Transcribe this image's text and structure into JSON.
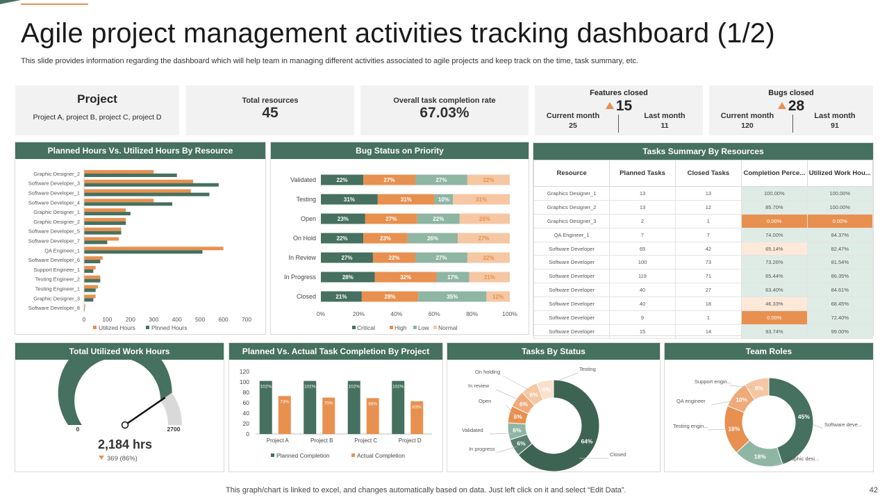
{
  "slide": {
    "title": "Agile project management activities tracking dashboard (1/2)",
    "subtitle": "This slide provides information regarding the dashboard which will help team in managing different activities associated to agile projects and keep track on the time, task summary, etc.",
    "footer": "This graph/chart is linked to excel,  and changes automatically based on data. Just left click on it and select “Edit Data”.",
    "page_number": "42"
  },
  "colors": {
    "green": "#46705f",
    "orange": "#e8904f",
    "sage": "#8fb5a3",
    "peach": "#f5c7a3",
    "light_green_cell": "#dfece5",
    "light_peach_cell": "#fde9d9",
    "panel_gray": "#f2f2f2"
  },
  "kpis": {
    "project": {
      "title": "Project",
      "value": "Project A, project B, project C, project D"
    },
    "resources": {
      "label": "Total resources",
      "value": "45"
    },
    "completion": {
      "label": "Overall task completion rate",
      "value": "67.03%"
    },
    "features": {
      "label": "Features closed",
      "value": "15",
      "current_label": "Current month",
      "current_value": "25",
      "last_label": "Last month",
      "last_value": "11",
      "icon": "triangle-up-icon"
    },
    "bugs": {
      "label": "Bugs closed",
      "value": "28",
      "current_label": "Current month",
      "current_value": "120",
      "last_label": "Last month",
      "last_value": "91",
      "icon": "triangle-up-icon"
    }
  },
  "panels": {
    "hours": "Planned Hours Vs. Utilized Hours By Resource",
    "bugs": "Bug Status  on Priority",
    "tasks": "Tasks Summary By Resources",
    "util": "Total Utilized Work Hours",
    "pva": "Planned Vs. Actual Task Completion By Project",
    "status": "Tasks By Status",
    "roles": "Team Roles"
  },
  "chart_data": [
    {
      "id": "hours",
      "type": "bar",
      "orientation": "horizontal",
      "categories": [
        "Graphic Designer_2",
        "Software Developer_3",
        "Software Developer_1",
        "Software Developer_4",
        "Graphic Designer_1",
        "Graphic Designer_2",
        "Software Developer_5",
        "Software Developer_7",
        "QA Engineer_1",
        "Software Developer_6",
        "Support Engineer_1",
        "Testing Engineer_2",
        "Testing Engineer_1",
        "Graphic Designer_3",
        "Software Developer_8"
      ],
      "series": [
        {
          "name": "Utilized Hours",
          "color": "#e8904f",
          "values": [
            300,
            470,
            460,
            300,
            180,
            180,
            160,
            150,
            600,
            80,
            50,
            70,
            60,
            50,
            5
          ]
        },
        {
          "name": "Plnned Hours",
          "color": "#46705f",
          "values": [
            400,
            580,
            540,
            380,
            200,
            180,
            160,
            100,
            510,
            70,
            40,
            70,
            50,
            40,
            3
          ]
        }
      ],
      "xlim": [
        0,
        700
      ],
      "xticks": [
        "0",
        "100",
        "200",
        "300",
        "400",
        "500",
        "600",
        "700"
      ]
    },
    {
      "id": "bug_status",
      "type": "bar",
      "orientation": "horizontal",
      "stacked": "percent",
      "categories": [
        "Validated",
        "Testing",
        "Open",
        "On Hold",
        "In Review",
        "In Progress",
        "Closed"
      ],
      "series": [
        {
          "name": "Critical",
          "color": "#46705f",
          "values": [
            22,
            31,
            23,
            22,
            27,
            28,
            21
          ]
        },
        {
          "name": "High",
          "color": "#e8904f",
          "values": [
            27,
            31,
            27,
            23,
            22,
            32,
            29
          ]
        },
        {
          "name": "Low",
          "color": "#8fb5a3",
          "values": [
            27,
            10,
            22,
            26,
            27,
            17,
            35
          ]
        },
        {
          "name": "Normal",
          "color": "#f5c7a3",
          "values": [
            22,
            31,
            26,
            27,
            22,
            21,
            12
          ]
        }
      ],
      "xticks": [
        "0%",
        "20%",
        "40%",
        "60%",
        "80%",
        "100%"
      ]
    },
    {
      "id": "tasks_summary",
      "type": "table",
      "columns": [
        "Resource",
        "Planned Tasks",
        "Closed Tasks",
        "Completion Perce...",
        "Utilized Work Hou..."
      ],
      "rows": [
        [
          "Graphics Designer_1",
          "13",
          "13",
          "100.00%",
          "100.00%"
        ],
        [
          "Graphics Designer_2",
          "13",
          "12",
          "85.70%",
          "100.00%"
        ],
        [
          "Graphics Designer_3",
          "2",
          "1",
          "0.00%",
          "0.00%"
        ],
        [
          "QA Engineer_1",
          "7",
          "7",
          "74.00%",
          "84.37%"
        ],
        [
          "Software Developer",
          "65",
          "42",
          "65.14%",
          "82.47%"
        ],
        [
          "Software Developer",
          "100",
          "73",
          "73.26%",
          "81.54%"
        ],
        [
          "Software Developer",
          "119",
          "71",
          "65.44%",
          "86.35%"
        ],
        [
          "Software Developer",
          "40",
          "27",
          "63.40%",
          "84.61%"
        ],
        [
          "Software Developer",
          "40",
          "18",
          "46.33%",
          "68.45%"
        ],
        [
          "Software Developer",
          "9",
          "1",
          "0.00%",
          "72.40%"
        ],
        [
          "Software Developer",
          "15",
          "14",
          "93.74%",
          "99.00%"
        ]
      ],
      "cell_colors": [
        [
          "",
          "",
          "",
          "#dfece5",
          "#dfece5"
        ],
        [
          "",
          "",
          "",
          "#dfece5",
          "#dfece5"
        ],
        [
          "",
          "",
          "",
          "#e8904f",
          "#e8904f"
        ],
        [
          "",
          "",
          "",
          "#dfece5",
          "#dfece5"
        ],
        [
          "",
          "",
          "",
          "#fde9d9",
          "#dfece5"
        ],
        [
          "",
          "",
          "",
          "#dfece5",
          "#dfece5"
        ],
        [
          "",
          "",
          "",
          "#dfece5",
          "#dfece5"
        ],
        [
          "",
          "",
          "",
          "#dfece5",
          "#dfece5"
        ],
        [
          "",
          "",
          "",
          "#fde9d9",
          "#dfece5"
        ],
        [
          "",
          "",
          "",
          "#e8904f",
          "#dfece5"
        ],
        [
          "",
          "",
          "",
          "#dfece5",
          "#dfece5"
        ]
      ]
    },
    {
      "id": "utilized_gauge",
      "type": "gauge",
      "min": 0,
      "max": 2700,
      "min_label": "0",
      "max_label": "2700",
      "value": 2184,
      "value_label": "2,184 hrs",
      "delta_label": "369 (86%)",
      "delta_icon": "triangle-down-icon"
    },
    {
      "id": "planned_vs_actual",
      "type": "bar",
      "categories": [
        "Project A",
        "Project B",
        "Project C",
        "Project D"
      ],
      "series": [
        {
          "name": "Planned Completion",
          "color": "#46705f",
          "values": [
            102,
            102,
            102,
            102
          ],
          "labels": [
            "102%",
            "102%",
            "102%",
            "102%"
          ]
        },
        {
          "name": "Actual Completion",
          "color": "#e8904f",
          "values": [
            73,
            70,
            69,
            63
          ],
          "labels": [
            "73%",
            "70%",
            "69%",
            "63%"
          ]
        }
      ],
      "ylim": [
        0,
        120
      ],
      "yticks": [
        "0",
        "20",
        "40",
        "60",
        "80",
        "100",
        "120"
      ]
    },
    {
      "id": "tasks_by_status",
      "type": "pie",
      "donut": true,
      "slices": [
        {
          "name": "Closed",
          "value": 64,
          "label": "64%",
          "color": "#3d6353"
        },
        {
          "name": "In progress",
          "value": 6,
          "label": "6%",
          "color": "#5a8070"
        },
        {
          "name": "Validated",
          "value": 6,
          "label": "6%",
          "color": "#8fb5a3"
        },
        {
          "name": "Open",
          "value": 6,
          "label": "6%",
          "color": "#e8904f"
        },
        {
          "name": "In review",
          "value": 6,
          "label": "6%",
          "color": "#f0a978"
        },
        {
          "name": "On holding",
          "value": 6,
          "label": "6%",
          "color": "#f5c7a3"
        },
        {
          "name": "Testing",
          "value": 6,
          "label": "6%",
          "color": "#fbe0cc"
        }
      ]
    },
    {
      "id": "team_roles",
      "type": "pie",
      "donut": true,
      "slices": [
        {
          "name": "Software deve...",
          "value": 45,
          "label": "45%",
          "color": "#46705f"
        },
        {
          "name": "Graphic desi...",
          "value": 18,
          "label": "18%",
          "color": "#8fb5a3"
        },
        {
          "name": "Testing engin...",
          "value": 18,
          "label": "18%",
          "color": "#e8904f"
        },
        {
          "name": "QA engineer",
          "value": 10,
          "label": "10%",
          "color": "#f0a978"
        },
        {
          "name": "Support engin...",
          "value": 9,
          "label": "9%",
          "color": "#f5c7a3"
        }
      ]
    }
  ]
}
